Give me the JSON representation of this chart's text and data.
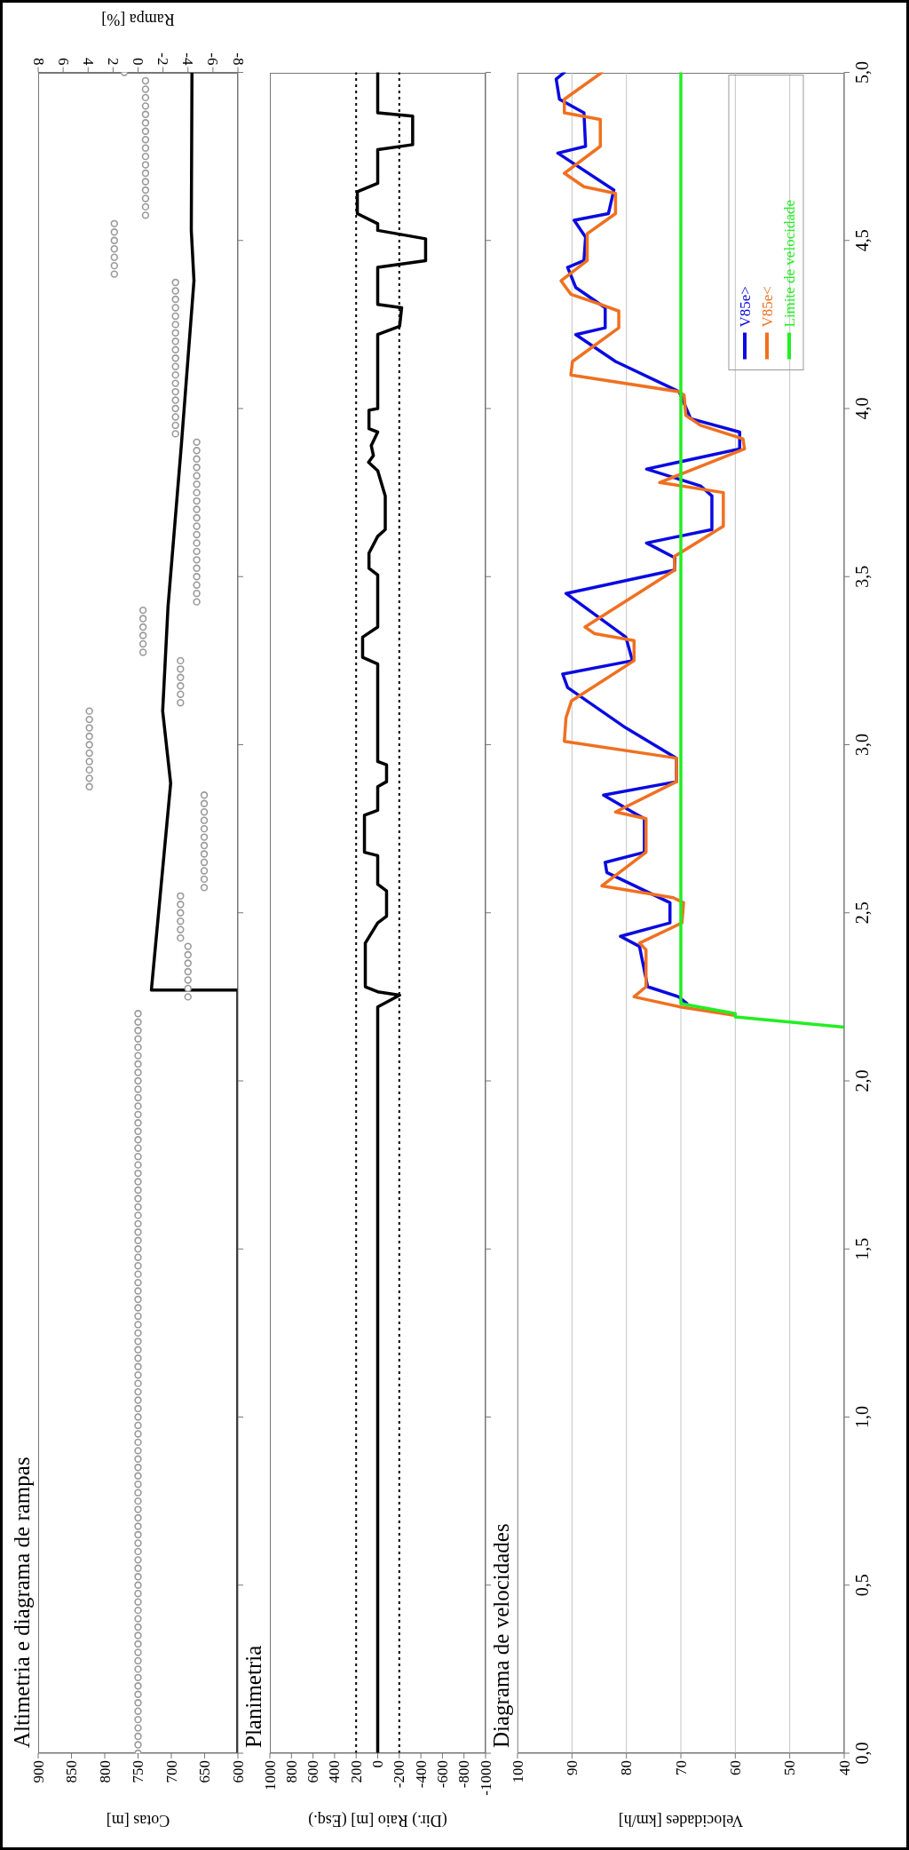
{
  "chart_data": [
    {
      "type": "line",
      "title": "Altimetria e diagrama de rampas",
      "xlabel": "Cotas [m]",
      "x2label": "Rampa [%]",
      "xlim": [
        900,
        600
      ],
      "xticks": [
        900,
        850,
        800,
        750,
        700,
        650,
        600
      ],
      "x2lim": [
        8,
        -8
      ],
      "x2ticks": [
        8,
        6,
        4,
        2,
        0,
        -2,
        -4,
        -6,
        -8
      ],
      "ylim": [
        0,
        5
      ],
      "yticks": [
        0,
        0.5,
        1,
        1.5,
        2,
        2.5,
        3,
        3.5,
        4,
        4.5,
        5
      ],
      "tick_labels": "x",
      "series": [
        {
          "color": "#000000",
          "x": [
            600,
            600,
            730,
            701,
            713,
            705,
            685,
            666,
            670,
            669
          ],
          "values": [
            0,
            2.27,
            2.27,
            2.885,
            3.1,
            3.41,
            3.89,
            4.38,
            4.53,
            5
          ]
        },
        {
          "type": "scatter",
          "axis": "x2",
          "marker": "circle",
          "color": "#999999",
          "values": [
            0,
            0.025,
            0.05,
            0.075,
            0.1,
            0.125,
            0.15,
            0.175,
            0.2,
            0.225,
            0.25,
            0.275,
            0.3,
            0.325,
            0.35,
            0.375,
            0.4,
            0.425,
            0.45,
            0.475,
            0.5,
            0.525,
            0.55,
            0.575,
            0.6,
            0.625,
            0.65,
            0.675,
            0.7,
            0.725,
            0.75,
            0.775,
            0.8,
            0.825,
            0.85,
            0.875,
            0.9,
            0.925,
            0.95,
            0.975,
            1,
            1.025,
            1.05,
            1.075,
            1.1,
            1.125,
            1.15,
            1.175,
            1.2,
            1.225,
            1.25,
            1.275,
            1.3,
            1.325,
            1.35,
            1.375,
            1.4,
            1.425,
            1.45,
            1.475,
            1.5,
            1.525,
            1.55,
            1.575,
            1.6,
            1.625,
            1.65,
            1.675,
            1.7,
            1.725,
            1.75,
            1.775,
            1.8,
            1.825,
            1.85,
            1.875,
            1.9,
            1.925,
            1.95,
            1.975,
            2,
            2.025,
            2.05,
            2.075,
            2.1,
            2.125,
            2.15,
            2.175,
            2.2
          ],
          "x": [
            0,
            0,
            0,
            0,
            0,
            0,
            0,
            0,
            0,
            0,
            0,
            0,
            0,
            0,
            0,
            0,
            0,
            0,
            0,
            0,
            0,
            0,
            0,
            0,
            0,
            0,
            0,
            0,
            0,
            0,
            0,
            0,
            0,
            0,
            0,
            0,
            0,
            0,
            0,
            0,
            0,
            0,
            0,
            0,
            0,
            0,
            0,
            0,
            0,
            0,
            0,
            0,
            0,
            0,
            0,
            0,
            0,
            0,
            0,
            0,
            0,
            0,
            0,
            0,
            0,
            0,
            0,
            0,
            0,
            0,
            0,
            0,
            0,
            0,
            0,
            0,
            0,
            0,
            0,
            0,
            0,
            0,
            0,
            0,
            0,
            0,
            0,
            0,
            0
          ]
        },
        {
          "type": "scatter",
          "axis": "x2",
          "marker": "circle",
          "color": "#999999",
          "values": [
            2.25,
            2.275,
            2.3,
            2.325,
            2.35,
            2.375,
            2.4
          ],
          "x": [
            -4,
            -4,
            -4,
            -4,
            -4,
            -4,
            -4
          ]
        },
        {
          "type": "scatter",
          "axis": "x2",
          "marker": "circle",
          "color": "#999999",
          "values": [
            2.425,
            2.45,
            2.475,
            2.5,
            2.525,
            2.55
          ],
          "x": [
            -3.4,
            -3.4,
            -3.4,
            -3.4,
            -3.4,
            -3.4
          ]
        },
        {
          "type": "scatter",
          "axis": "x2",
          "marker": "circle",
          "color": "#999999",
          "values": [
            2.575,
            2.6,
            2.625,
            2.65,
            2.675,
            2.7,
            2.725,
            2.75,
            2.775,
            2.8,
            2.825,
            2.85
          ],
          "x": [
            -5.3,
            -5.3,
            -5.3,
            -5.3,
            -5.3,
            -5.3,
            -5.3,
            -5.3,
            -5.3,
            -5.3,
            -5.3,
            -5.3
          ]
        },
        {
          "type": "scatter",
          "axis": "x2",
          "marker": "circle",
          "color": "#999999",
          "values": [
            2.875,
            2.9,
            2.925,
            2.95,
            2.975,
            3,
            3.025,
            3.05,
            3.075,
            3.1
          ],
          "x": [
            3.9,
            3.9,
            3.9,
            3.9,
            3.9,
            3.9,
            3.9,
            3.9,
            3.9,
            3.9
          ]
        },
        {
          "type": "scatter",
          "axis": "x2",
          "marker": "circle",
          "color": "#999999",
          "values": [
            3.125,
            3.15,
            3.175,
            3.2,
            3.225,
            3.25
          ],
          "x": [
            -3.4,
            -3.4,
            -3.4,
            -3.4,
            -3.4,
            -3.4
          ]
        },
        {
          "type": "scatter",
          "axis": "x2",
          "marker": "circle",
          "color": "#999999",
          "values": [
            3.275,
            3.3,
            3.325,
            3.35,
            3.375,
            3.4
          ],
          "x": [
            -0.4,
            -0.4,
            -0.4,
            -0.4,
            -0.4,
            -0.4
          ]
        },
        {
          "type": "scatter",
          "axis": "x2",
          "marker": "circle",
          "color": "#999999",
          "values": [
            3.425,
            3.45,
            3.475,
            3.5,
            3.525,
            3.55,
            3.575,
            3.6,
            3.625,
            3.65,
            3.675,
            3.7,
            3.725,
            3.75,
            3.775,
            3.8,
            3.825,
            3.85,
            3.875,
            3.9
          ],
          "x": [
            -4.7,
            -4.7,
            -4.7,
            -4.7,
            -4.7,
            -4.7,
            -4.7,
            -4.7,
            -4.7,
            -4.7,
            -4.7,
            -4.7,
            -4.7,
            -4.7,
            -4.7,
            -4.7,
            -4.7,
            -4.7,
            -4.7,
            -4.7
          ]
        },
        {
          "type": "scatter",
          "axis": "x2",
          "marker": "circle",
          "color": "#999999",
          "values": [
            3.925,
            3.95,
            3.975,
            4,
            4.025,
            4.05,
            4.075,
            4.1,
            4.125,
            4.15,
            4.175,
            4.2,
            4.225,
            4.25,
            4.275,
            4.3,
            4.325,
            4.35,
            4.375
          ],
          "x": [
            -3,
            -3,
            -3,
            -3,
            -3,
            -3,
            -3,
            -3,
            -3,
            -3,
            -3,
            -3,
            -3,
            -3,
            -3,
            -3,
            -3,
            -3,
            -3
          ]
        },
        {
          "type": "scatter",
          "axis": "x2",
          "marker": "circle",
          "color": "#999999",
          "values": [
            4.4,
            4.425,
            4.45,
            4.475,
            4.5,
            4.525,
            4.55
          ],
          "x": [
            1.9,
            1.9,
            1.9,
            1.9,
            1.9,
            1.9,
            1.9
          ]
        },
        {
          "type": "scatter",
          "axis": "x2",
          "marker": "circle",
          "color": "#999999",
          "values": [
            4.575,
            4.6,
            4.625,
            4.65,
            4.675,
            4.7,
            4.725,
            4.75,
            4.775,
            4.8,
            4.825,
            4.85,
            4.875,
            4.9,
            4.925,
            4.95,
            4.975
          ],
          "x": [
            -0.6,
            -0.6,
            -0.6,
            -0.6,
            -0.6,
            -0.6,
            -0.6,
            -0.6,
            -0.6,
            -0.6,
            -0.6,
            -0.6,
            -0.6,
            -0.6,
            -0.6,
            -0.6,
            -0.6
          ]
        },
        {
          "type": "scatter",
          "axis": "x2",
          "marker": "circle",
          "color": "#999999",
          "values": [
            5
          ],
          "x": [
            1.1
          ]
        }
      ]
    },
    {
      "type": "line",
      "title": "Planimetria",
      "xlabel": "(Dir.) Raio [m] (Esq.)",
      "xlim": [
        1000,
        -1000
      ],
      "xticks": [
        1000,
        800,
        600,
        400,
        200,
        0,
        -200,
        -400,
        -600,
        -800,
        -1000
      ],
      "ylim": [
        0,
        5
      ],
      "yticks": [
        0,
        0.5,
        1,
        1.5,
        2,
        2.5,
        3,
        3.5,
        4,
        4.5,
        5
      ],
      "tick_labels": "x",
      "ref_lines": [
        {
          "axis": "x",
          "value": 200,
          "color": "#000000",
          "line_style": "dotted"
        },
        {
          "axis": "x",
          "value": -200,
          "color": "#000000",
          "line_style": "dotted"
        }
      ],
      "series": [
        {
          "color": "#000000",
          "values": [
            0,
            2.22,
            2.255,
            2.265,
            2.28,
            2.41,
            2.47,
            2.49,
            2.565,
            2.585,
            2.67,
            2.68,
            2.79,
            2.805,
            2.875,
            2.89,
            2.94,
            2.95,
            3.24,
            3.26,
            3.32,
            3.35,
            3.505,
            3.525,
            3.57,
            3.62,
            3.64,
            3.74,
            3.815,
            3.84,
            3.86,
            3.89,
            3.93,
            3.94,
            3.995,
            4,
            4.22,
            4.245,
            4.3,
            4.31,
            4.42,
            4.44,
            4.505,
            4.53,
            4.55,
            4.58,
            4.645,
            4.67,
            4.77,
            4.785,
            4.87,
            4.88,
            5
          ],
          "x": [
            0,
            0,
            -203,
            0,
            115,
            115,
            0,
            -82,
            -82,
            0,
            0,
            123,
            123,
            0,
            0,
            -82,
            -82,
            0,
            0,
            140,
            140,
            0,
            0,
            81,
            81,
            0,
            -70,
            -70,
            0,
            85,
            40,
            60,
            0,
            81,
            81,
            0,
            0,
            -203,
            -222,
            0,
            0,
            -444,
            -444,
            0,
            0,
            189,
            189,
            0,
            0,
            -324,
            -324,
            0,
            0
          ]
        }
      ]
    },
    {
      "type": "line",
      "title": "Diagrama de velocidades",
      "xlabel": "Velocidades [km/h]",
      "xlim": [
        100,
        40
      ],
      "xticks": [
        100,
        90,
        80,
        70,
        60,
        50,
        40
      ],
      "ylim": [
        0,
        5
      ],
      "yticks": [
        {
          "value": 0,
          "label": "0,0"
        },
        {
          "value": 0.5,
          "label": "0,5"
        },
        {
          "value": 1,
          "label": "1,0"
        },
        {
          "value": 1.5,
          "label": "1,5"
        },
        {
          "value": 2,
          "label": "2,0"
        },
        {
          "value": 2.5,
          "label": "2,5"
        },
        {
          "value": 3,
          "label": "3,0"
        },
        {
          "value": 3.5,
          "label": "3,5"
        },
        {
          "value": 4,
          "label": "4,0"
        },
        {
          "value": 4.5,
          "label": "4,5"
        },
        {
          "value": 5,
          "label": "5,0"
        }
      ],
      "grid": "x",
      "legend": "top right",
      "series": [
        {
          "name": "V85e>",
          "color": "#0a0ae0",
          "values": [
            2.23,
            2.25,
            2.28,
            2.4,
            2.43,
            2.47,
            2.53,
            2.62,
            2.65,
            2.68,
            2.78,
            2.8,
            2.85,
            2.89,
            2.96,
            3.05,
            3.17,
            3.21,
            3.25,
            3.32,
            3.45,
            3.52,
            3.556,
            3.6,
            3.64,
            3.74,
            3.77,
            3.82,
            3.88,
            3.93,
            3.97,
            4.05,
            4.14,
            4.22,
            4.24,
            4.3,
            4.36,
            4.42,
            4.44,
            4.51,
            4.56,
            4.58,
            4.65,
            4.76,
            4.78,
            4.88,
            4.92,
            4.98,
            5
          ],
          "x": [
            68.9,
            70.4,
            76.1,
            77.6,
            81.1,
            72,
            72,
            83.6,
            83.9,
            76.7,
            76.7,
            78.9,
            84.2,
            70.8,
            70.8,
            80.1,
            90.8,
            91.7,
            78.9,
            80.1,
            91.1,
            71.1,
            71.1,
            76.3,
            64.3,
            64.3,
            66.4,
            76.3,
            59.2,
            59.2,
            68.2,
            70.3,
            82,
            89.3,
            83.9,
            83.9,
            89.3,
            90.8,
            87.8,
            87.5,
            89.6,
            83.3,
            82.3,
            92.6,
            87.5,
            87.8,
            92.3,
            92.9,
            91.4
          ]
        },
        {
          "name": "V85e<",
          "color": "#f07020",
          "values": [
            2.195,
            2.22,
            2.25,
            2.28,
            2.39,
            2.41,
            2.47,
            2.53,
            2.545,
            2.58,
            2.68,
            2.78,
            2.8,
            2.89,
            2.96,
            3.01,
            3.08,
            3.13,
            3.25,
            3.31,
            3.33,
            3.35,
            3.52,
            3.56,
            3.65,
            3.75,
            3.78,
            3.88,
            3.91,
            3.95,
            3.98,
            4.04,
            4.05,
            4.1,
            4.14,
            4.24,
            4.29,
            4.31,
            4.34,
            4.38,
            4.44,
            4.52,
            4.58,
            4.64,
            4.66,
            4.7,
            4.78,
            4.86,
            4.88,
            4.92,
            5
          ],
          "x": [
            60.1,
            70.1,
            78.6,
            76.4,
            76.4,
            77.6,
            69.8,
            69.5,
            71.4,
            84.5,
            76.4,
            76.4,
            82,
            70.8,
            70.8,
            91.4,
            91.1,
            90.1,
            78.6,
            78.6,
            85.8,
            87.6,
            71.1,
            71.2,
            62.2,
            62.2,
            73.9,
            58.3,
            58.6,
            66.4,
            69.1,
            69.4,
            70.3,
            90.2,
            89.9,
            81.4,
            81.4,
            84.8,
            90.2,
            92,
            87.2,
            87.2,
            82,
            82,
            87.8,
            91.4,
            84.8,
            84.8,
            91.4,
            91.4,
            84.5
          ]
        },
        {
          "name": "Limite de velocidade",
          "color": "#22ee22",
          "values": [
            2.16,
            2.19,
            2.2,
            2.23,
            5
          ],
          "x": [
            40,
            60,
            60,
            70,
            70
          ]
        }
      ]
    }
  ]
}
